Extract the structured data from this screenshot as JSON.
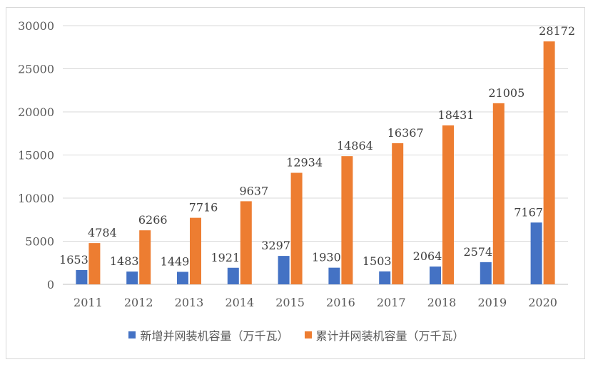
{
  "chart_data": {
    "type": "bar",
    "categories": [
      "2011",
      "2012",
      "2013",
      "2014",
      "2015",
      "2016",
      "2017",
      "2018",
      "2019",
      "2020"
    ],
    "series": [
      {
        "name": "新增并网装机容量（万千瓦）",
        "color": "#4472c4",
        "values": [
          1653,
          1483,
          1449,
          1921,
          3297,
          1930,
          1503,
          2064,
          2574,
          7167
        ]
      },
      {
        "name": "累计并网装机容量（万千瓦）",
        "color": "#ed7d31",
        "values": [
          4784,
          6266,
          7716,
          9637,
          12934,
          14864,
          16367,
          18431,
          21005,
          28172
        ]
      }
    ],
    "ylim": [
      0,
      30000
    ],
    "yticks": [
      0,
      5000,
      10000,
      15000,
      20000,
      25000,
      30000
    ],
    "grid": true,
    "legend": "bottom",
    "title": "",
    "xlabel": "",
    "ylabel": ""
  }
}
